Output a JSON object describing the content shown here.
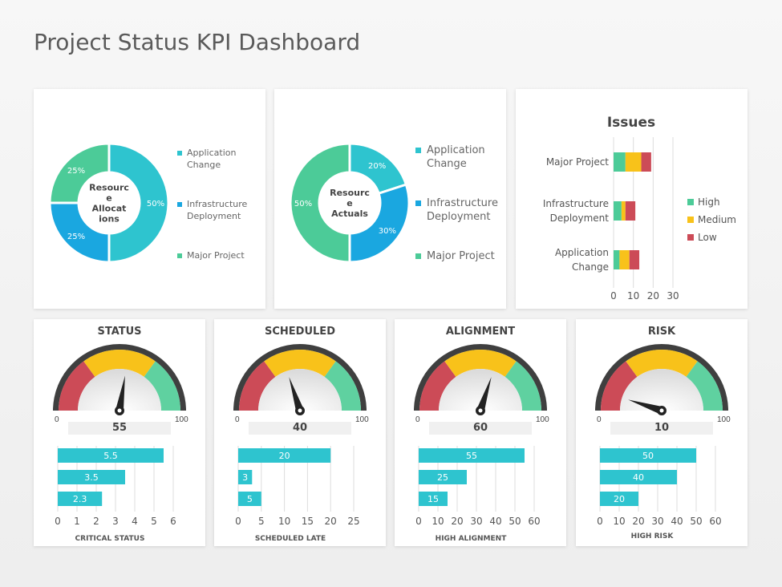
{
  "page": {
    "title": "Project Status KPI Dashboard"
  },
  "colors": {
    "teal_light": "#2ec4cf",
    "blue": "#1aa7e0",
    "green": "#4ccb98",
    "red": "#cc4b57",
    "yellow": "#f8c21a",
    "gauge_green": "#5fd1a0",
    "gauge_dark": "#3f3f3f",
    "bar": "#2ec4cf"
  },
  "chart_data": [
    {
      "type": "pie",
      "center_label": "Resource Allocations",
      "slices": [
        {
          "label": "Application Change",
          "value": 50,
          "data_label": "50%"
        },
        {
          "label": "Infrastructure Deployment",
          "value": 25,
          "data_label": "25%"
        },
        {
          "label": "Major Project",
          "value": 25,
          "data_label": "25%"
        }
      ],
      "legend": [
        "Application Change",
        "Infrastructure Deployment",
        "Major Project"
      ]
    },
    {
      "type": "pie",
      "center_label": "Resource Actuals",
      "slices": [
        {
          "label": "Application Change",
          "value": 20,
          "data_label": "20%"
        },
        {
          "label": "Infrastructure Deployment",
          "value": 30,
          "data_label": "30%"
        },
        {
          "label": "Major Project",
          "value": 50,
          "data_label": "50%"
        }
      ],
      "legend": [
        "Application Change",
        "Infrastructure Deployment",
        "Major Project"
      ]
    },
    {
      "type": "bar",
      "orientation": "horizontal",
      "stacked": true,
      "title": "Issues",
      "categories": [
        "Major Project",
        "Infrastructure Deployment",
        "Application Change"
      ],
      "series": [
        {
          "name": "High",
          "values": [
            6,
            4,
            3
          ]
        },
        {
          "name": "Medium",
          "values": [
            8,
            2,
            5
          ]
        },
        {
          "name": "Low",
          "values": [
            5,
            5,
            5
          ]
        }
      ],
      "xticks": [
        "0",
        "10",
        "20",
        "30"
      ],
      "xlim": [
        0,
        30
      ]
    },
    {
      "type": "gauge",
      "title": "STATUS",
      "value": 55,
      "value_label": "55",
      "min_label": "0",
      "max_label": "100",
      "min": 0,
      "max": 100
    },
    {
      "type": "gauge",
      "title": "SCHEDULED",
      "value": 40,
      "value_label": "40",
      "min_label": "0",
      "max_label": "100",
      "min": 0,
      "max": 100
    },
    {
      "type": "gauge",
      "title": "ALIGNMENT",
      "value": 60,
      "value_label": "60",
      "min_label": "0",
      "max_label": "100",
      "min": 0,
      "max": 100
    },
    {
      "type": "gauge",
      "title": "RISK",
      "value": 10,
      "value_label": "10",
      "min_label": "0",
      "max_label": "100",
      "min": 0,
      "max": 100
    },
    {
      "type": "bar",
      "orientation": "horizontal",
      "xlabel": "CRITICAL STATUS",
      "values": [
        5.5,
        3.5,
        2.3
      ],
      "data_labels": [
        "5.5",
        "3.5",
        "2.3"
      ],
      "xticks": [
        "0",
        "1",
        "2",
        "3",
        "4",
        "5",
        "6"
      ],
      "xlim": [
        0,
        6
      ]
    },
    {
      "type": "bar",
      "orientation": "horizontal",
      "xlabel": "SCHEDULED LATE",
      "values": [
        20,
        3,
        5
      ],
      "data_labels": [
        "20",
        "3",
        "5"
      ],
      "xticks": [
        "0",
        "5",
        "10",
        "15",
        "20",
        "25"
      ],
      "xlim": [
        0,
        25
      ]
    },
    {
      "type": "bar",
      "orientation": "horizontal",
      "xlabel": "HIGH ALIGNMENT",
      "values": [
        55,
        25,
        15
      ],
      "data_labels": [
        "55",
        "25",
        "15"
      ],
      "xticks": [
        "0",
        "10",
        "20",
        "30",
        "40",
        "50",
        "60"
      ],
      "xlim": [
        0,
        60
      ]
    },
    {
      "type": "bar",
      "orientation": "horizontal",
      "xlabel": "HIGH RISK",
      "values": [
        50,
        40,
        20
      ],
      "data_labels": [
        "50",
        "40",
        "20"
      ],
      "xticks": [
        "0",
        "10",
        "20",
        "30",
        "40",
        "50",
        "60"
      ],
      "xlim": [
        0,
        60
      ]
    }
  ]
}
